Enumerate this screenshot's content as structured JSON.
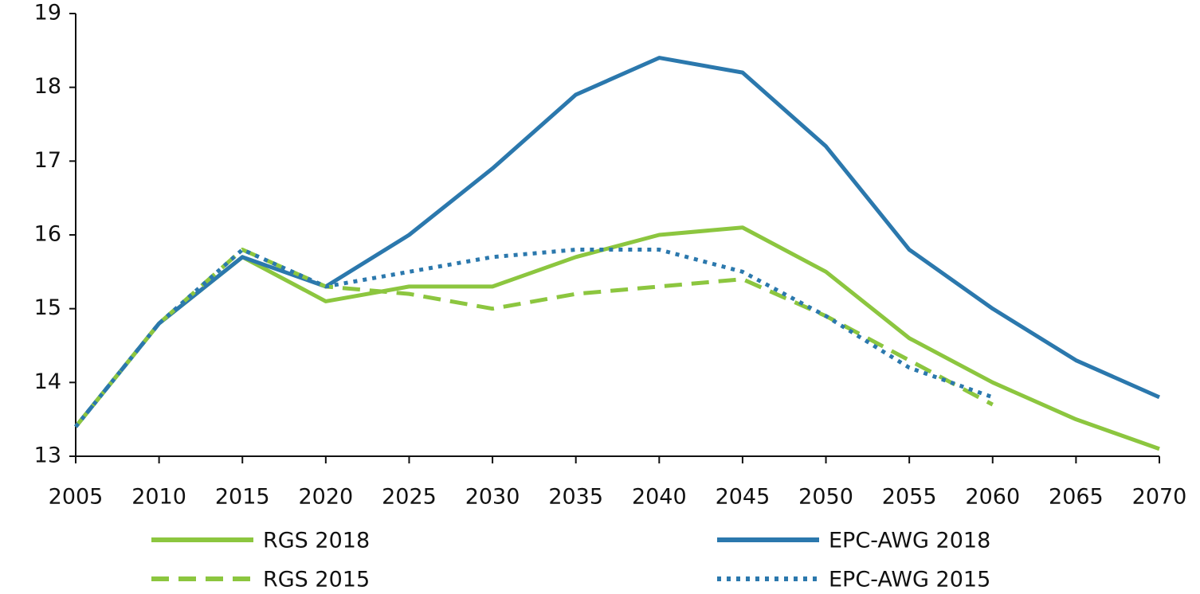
{
  "chart_data": {
    "type": "line",
    "x": [
      2005,
      2010,
      2015,
      2020,
      2025,
      2030,
      2035,
      2040,
      2045,
      2050,
      2055,
      2060,
      2065,
      2070
    ],
    "series": [
      {
        "name": "RGS 2018",
        "color": "#8cc63f",
        "style": "solid",
        "values": [
          13.4,
          14.8,
          15.7,
          15.1,
          15.3,
          15.3,
          15.7,
          16.0,
          16.1,
          15.5,
          14.6,
          14.0,
          13.5,
          13.1
        ]
      },
      {
        "name": "EPC-AWG 2018",
        "color": "#2b78ad",
        "style": "solid",
        "values": [
          13.4,
          14.8,
          15.7,
          15.3,
          16.0,
          16.9,
          17.9,
          18.4,
          18.2,
          17.2,
          15.8,
          15.0,
          14.3,
          13.8
        ]
      },
      {
        "name": "RGS 2015",
        "color": "#8cc63f",
        "style": "dashed",
        "values": [
          13.4,
          14.8,
          15.8,
          15.3,
          15.2,
          15.0,
          15.2,
          15.3,
          15.4,
          14.9,
          14.3,
          13.7,
          null,
          null
        ]
      },
      {
        "name": "EPC-AWG 2015",
        "color": "#2b78ad",
        "style": "dotted",
        "values": [
          13.4,
          14.8,
          15.8,
          15.3,
          15.5,
          15.7,
          15.8,
          15.8,
          15.5,
          14.9,
          14.2,
          13.8,
          null,
          null
        ]
      }
    ],
    "xlim": [
      2005,
      2070
    ],
    "xticks": [
      2005,
      2010,
      2015,
      2020,
      2025,
      2030,
      2035,
      2040,
      2045,
      2050,
      2055,
      2060,
      2065,
      2070
    ],
    "ylim": [
      13,
      19
    ],
    "yticks": [
      13,
      14,
      15,
      16,
      17,
      18,
      19
    ],
    "grid": false,
    "legend": "bottom"
  }
}
